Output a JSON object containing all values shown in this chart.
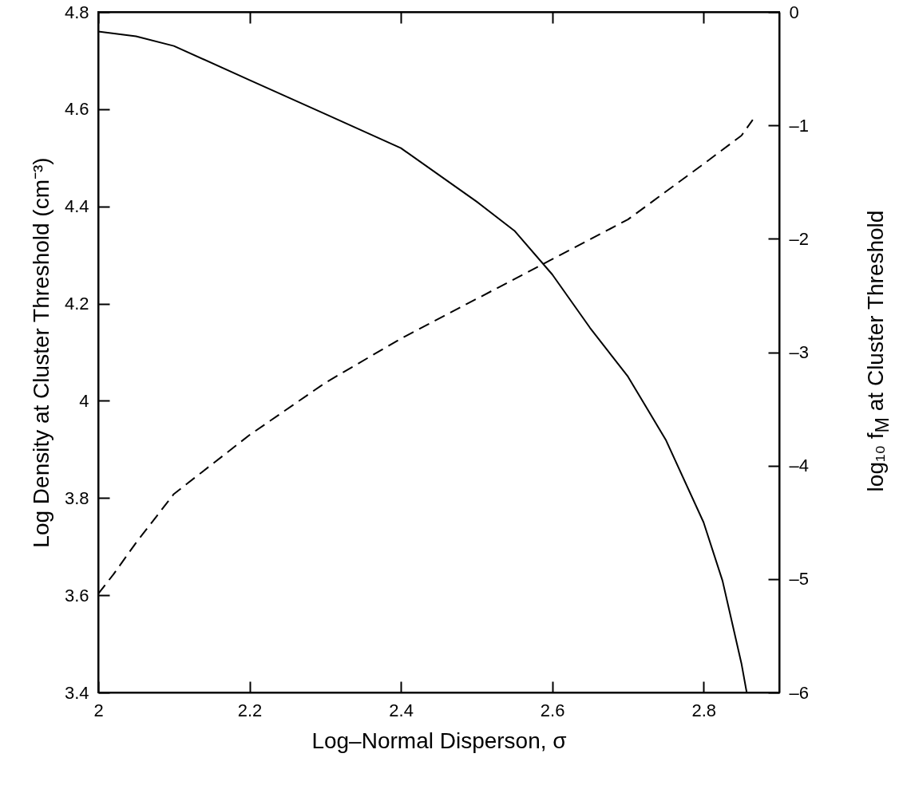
{
  "chart_data": {
    "type": "line",
    "xlabel": "Log–Normal Disperson, σ",
    "ylabel": "Log Density at Cluster Threshold (cm⁻³)",
    "y2label": "log₁₀ f$_{M}$ at Cluster Threshold",
    "xlim": [
      2,
      2.9
    ],
    "xticks": [
      2,
      2.2,
      2.4,
      2.6,
      2.8
    ],
    "ylim": [
      3.4,
      4.8
    ],
    "yticks": [
      3.4,
      3.6,
      3.8,
      4,
      4.2,
      4.4,
      4.6,
      4.8
    ],
    "y2lim": [
      -6,
      0
    ],
    "y2ticks": [
      {
        "value": -6,
        "label": "–6"
      },
      {
        "value": -5,
        "label": "–5"
      },
      {
        "value": -4,
        "label": "–4"
      },
      {
        "value": -3,
        "label": "–3"
      },
      {
        "value": -2,
        "label": "–2"
      },
      {
        "value": -1,
        "label": "–1"
      },
      0
    ],
    "grid": false,
    "series": [
      {
        "color": "#000000",
        "line_style": "solid",
        "x": [
          2,
          2.05,
          2.1,
          2.2,
          2.3,
          2.4,
          2.5,
          2.55,
          2.6,
          2.65,
          2.7,
          2.75,
          2.8,
          2.825,
          2.85,
          2.857
        ],
        "values": [
          4.76,
          4.75,
          4.73,
          4.66,
          4.59,
          4.52,
          4.41,
          4.35,
          4.26,
          4.15,
          4.05,
          3.92,
          3.75,
          3.63,
          3.46,
          3.4
        ]
      },
      {
        "color": "#000000",
        "line_style": "dashed",
        "axis": "y2",
        "x": [
          2,
          2.02,
          2.05,
          2.1,
          2.2,
          2.3,
          2.4,
          2.5,
          2.6,
          2.7,
          2.8,
          2.85,
          2.865
        ],
        "values": [
          -5.13,
          -4.96,
          -4.68,
          -4.25,
          -3.73,
          -3.27,
          -2.88,
          -2.53,
          -2.18,
          -1.83,
          -1.34,
          -1.09,
          -0.95
        ]
      }
    ]
  }
}
